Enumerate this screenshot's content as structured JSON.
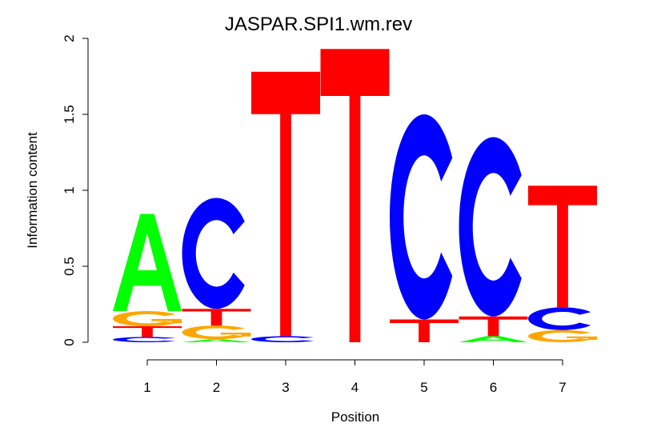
{
  "chart_data": {
    "type": "sequence-logo",
    "title": "JASPAR.SPI1.wm.rev",
    "xlabel": "Position",
    "ylabel": "Information content",
    "ylim": [
      0,
      2
    ],
    "yticks": [
      "0",
      "0.5",
      "1",
      "1.5",
      "2"
    ],
    "ytick_values": [
      0,
      0.5,
      1,
      1.5,
      2
    ],
    "categories": [
      "1",
      "2",
      "3",
      "4",
      "5",
      "6",
      "7"
    ],
    "colors": {
      "A": "#00ff00",
      "C": "#0000ff",
      "G": "#ffa500",
      "T": "#ff0000"
    },
    "positions": [
      {
        "position": "1",
        "stack": [
          {
            "letter": "C",
            "height": 0.035
          },
          {
            "letter": "T",
            "height": 0.07
          },
          {
            "letter": "G",
            "height": 0.1
          },
          {
            "letter": "A",
            "height": 0.64
          }
        ]
      },
      {
        "position": "2",
        "stack": [
          {
            "letter": "A",
            "height": 0.02
          },
          {
            "letter": "G",
            "height": 0.09
          },
          {
            "letter": "T",
            "height": 0.11
          },
          {
            "letter": "C",
            "height": 0.73
          }
        ]
      },
      {
        "position": "3",
        "stack": [
          {
            "letter": "C",
            "height": 0.04
          },
          {
            "letter": "T",
            "height": 1.74
          }
        ]
      },
      {
        "position": "4",
        "stack": [
          {
            "letter": "T",
            "height": 1.93
          }
        ]
      },
      {
        "position": "5",
        "stack": [
          {
            "letter": "T",
            "height": 0.15
          },
          {
            "letter": "C",
            "height": 1.35
          }
        ]
      },
      {
        "position": "6",
        "stack": [
          {
            "letter": "A",
            "height": 0.04
          },
          {
            "letter": "T",
            "height": 0.13
          },
          {
            "letter": "C",
            "height": 1.18
          }
        ]
      },
      {
        "position": "7",
        "stack": [
          {
            "letter": "G",
            "height": 0.08
          },
          {
            "letter": "C",
            "height": 0.15
          },
          {
            "letter": "T",
            "height": 0.8
          }
        ]
      }
    ]
  }
}
